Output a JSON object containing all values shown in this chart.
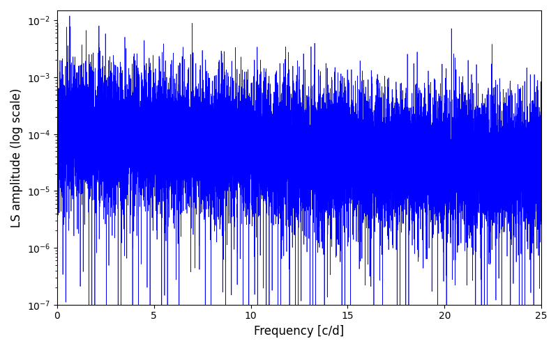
{
  "title": "",
  "xlabel": "Frequency [c/d]",
  "ylabel": "LS amplitude (log scale)",
  "xlim": [
    0,
    25
  ],
  "ylim": [
    1e-07,
    0.015
  ],
  "line_color": "#0000ff",
  "line_width": 0.5,
  "yscale": "log",
  "figsize": [
    8.0,
    5.0
  ],
  "dpi": 100,
  "seed": 12345,
  "n_points": 15000,
  "freq_max": 25.0,
  "background_color": "#ffffff"
}
